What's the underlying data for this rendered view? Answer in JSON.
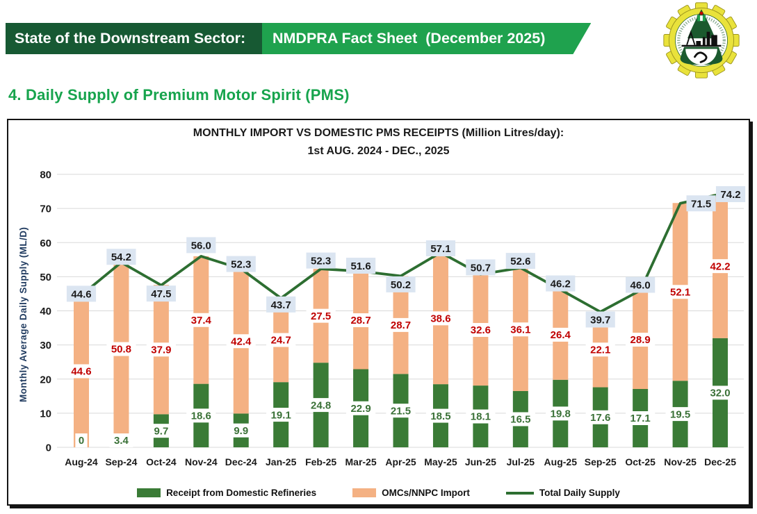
{
  "header": {
    "left_text": "State of the Downstream Sector:",
    "right_text": "NMDPRA Fact Sheet",
    "date_text": "(December 2025)"
  },
  "icons": {
    "logo": "nmdpra-gear-emblem"
  },
  "section_title": "4. Daily Supply of Premium Motor Spirit (PMS)",
  "colors": {
    "banner_dark_green": "#175933",
    "banner_light_green": "#1fa24e",
    "section_green": "#17a44d",
    "domestic_bar_green": "#3a7b36",
    "import_bar_peach": "#f4b183",
    "total_line_green": "#2d6e31",
    "total_label_bg": "#dbe5f1",
    "import_label_red": "#c00000",
    "domestic_label_green": "#3a7137",
    "axis_title_navy": "#1f3a5f",
    "grid_gray": "#d9d9d9",
    "text_black": "#1a1a1a"
  },
  "chart_data": {
    "type": "bar",
    "subtype": "stacked-bars-with-total-line",
    "title_line1": "MONTHLY IMPORT VS DOMESTIC PMS RECEIPTS (Million Litres/day):",
    "title_line2": "1st AUG. 2024 -  DEC., 2025",
    "ylabel": "Monthly Average Daily Supply  (ML/D)",
    "ylim": [
      0,
      80
    ],
    "ytick_step": 10,
    "grid": true,
    "legend_position": "bottom",
    "categories": [
      "Aug-24",
      "Sep-24",
      "Oct-24",
      "Nov-24",
      "Dec-24",
      "Jan-25",
      "Feb-25",
      "Mar-25",
      "Apr-25",
      "May-25",
      "Jun-25",
      "Jul-25",
      "Aug-25",
      "Sep-25",
      "Oct-25",
      "Nov-25",
      "Dec-25"
    ],
    "series": [
      {
        "name": "Receipt from Domestic Refineries",
        "type": "bar",
        "values": [
          0,
          3.4,
          9.7,
          18.6,
          9.9,
          19.1,
          24.8,
          22.9,
          21.5,
          18.5,
          18.1,
          16.5,
          19.8,
          17.6,
          17.1,
          19.5,
          32.0
        ]
      },
      {
        "name": "OMCs/NNPC Import",
        "type": "bar",
        "values": [
          44.6,
          50.8,
          37.9,
          37.4,
          42.4,
          24.7,
          27.5,
          28.7,
          28.7,
          38.6,
          32.6,
          36.1,
          26.4,
          22.1,
          28.9,
          52.1,
          42.2
        ]
      },
      {
        "name": "Total Daily Supply",
        "type": "line",
        "values": [
          44.6,
          54.2,
          47.5,
          56.0,
          52.3,
          43.7,
          52.3,
          51.6,
          50.2,
          57.1,
          50.7,
          52.6,
          46.2,
          39.7,
          46.0,
          71.5,
          74.2
        ]
      }
    ],
    "total_label_dy": [
      -2,
      -8,
      12,
      -16,
      -7,
      9,
      -12,
      -8,
      12,
      -6,
      -10,
      -10,
      -9,
      11,
      -8,
      0,
      0
    ],
    "total_label_dx": [
      0,
      0,
      0,
      0,
      0,
      0,
      0,
      0,
      0,
      0,
      0,
      0,
      0,
      0,
      0,
      30,
      15
    ]
  }
}
